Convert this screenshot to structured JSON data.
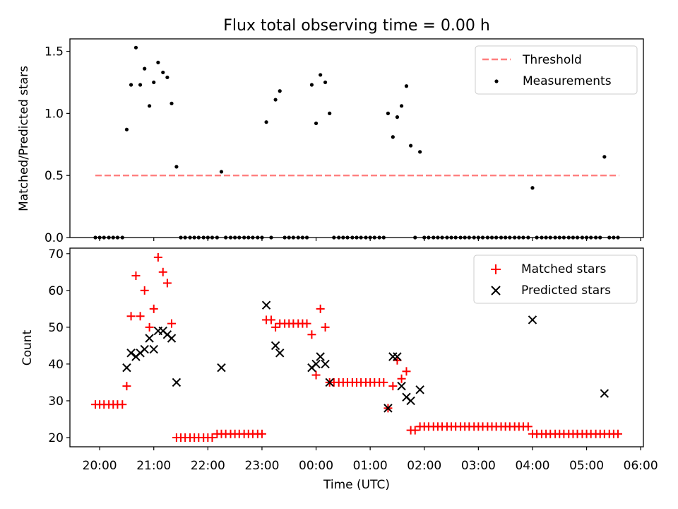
{
  "figure": {
    "title": "Flux total observing time = 0.00 h"
  },
  "chart_data": [
    {
      "type": "scatter",
      "ylabel": "Matched/Predicted stars",
      "xlim": [
        19.45,
        30.05
      ],
      "ylim": [
        0.0,
        1.6
      ],
      "yticks": [
        0.0,
        0.5,
        1.0,
        1.5
      ],
      "ytick_labels": [
        "0.0",
        "0.5",
        "1.0",
        "1.5"
      ],
      "legend": {
        "position": "top-right",
        "entries": [
          "Threshold",
          "Measurements"
        ]
      },
      "colors": {
        "threshold": "#ff7f7f",
        "points": "#000000"
      },
      "threshold": {
        "name": "Threshold",
        "y": 0.5,
        "x": [
          19.92,
          29.6
        ]
      },
      "series": [
        {
          "name": "Measurements",
          "x": [
            19.92,
            20.0,
            20.08,
            20.17,
            20.25,
            20.33,
            20.42,
            20.5,
            20.58,
            20.67,
            20.75,
            20.83,
            20.92,
            21.0,
            21.08,
            21.17,
            21.25,
            21.33,
            21.42,
            21.5,
            21.58,
            21.67,
            21.75,
            21.83,
            21.92,
            22.0,
            22.08,
            22.17,
            22.25,
            22.33,
            22.42,
            22.5,
            22.58,
            22.67,
            22.75,
            22.83,
            22.92,
            23.0,
            23.08,
            23.17,
            23.25,
            23.33,
            23.42,
            23.5,
            23.58,
            23.67,
            23.75,
            23.83,
            23.92,
            24.0,
            24.08,
            24.17,
            24.25,
            24.33,
            24.42,
            24.5,
            24.58,
            24.67,
            24.75,
            24.83,
            24.92,
            25.0,
            25.08,
            25.17,
            25.25,
            25.33,
            25.42,
            25.5,
            25.58,
            25.67,
            25.75,
            25.83,
            25.92,
            26.0,
            26.08,
            26.17,
            26.25,
            26.33,
            26.42,
            26.5,
            26.58,
            26.67,
            26.75,
            26.83,
            26.92,
            27.0,
            27.08,
            27.17,
            27.25,
            27.33,
            27.42,
            27.5,
            27.58,
            27.67,
            27.75,
            27.83,
            27.92,
            28.0,
            28.08,
            28.17,
            28.25,
            28.33,
            28.42,
            28.5,
            28.58,
            28.67,
            28.75,
            28.83,
            28.92,
            29.0,
            29.08,
            29.17,
            29.25,
            29.33,
            29.42,
            29.5,
            29.58
          ],
          "y": [
            0.0,
            0.0,
            0.0,
            0.0,
            0.0,
            0.0,
            0.0,
            0.87,
            1.23,
            1.53,
            1.23,
            1.36,
            1.06,
            1.25,
            1.41,
            1.33,
            1.29,
            1.08,
            0.57,
            0.0,
            0.0,
            0.0,
            0.0,
            0.0,
            0.0,
            0.0,
            0.0,
            0.0,
            0.53,
            0.0,
            0.0,
            0.0,
            0.0,
            0.0,
            0.0,
            0.0,
            0.0,
            0.0,
            0.93,
            0.0,
            1.11,
            1.18,
            0.0,
            0.0,
            0.0,
            0.0,
            0.0,
            0.0,
            1.23,
            0.92,
            1.31,
            1.25,
            1.0,
            0.0,
            0.0,
            0.0,
            0.0,
            0.0,
            0.0,
            0.0,
            0.0,
            0.0,
            0.0,
            0.0,
            0.0,
            1.0,
            0.81,
            0.97,
            1.06,
            1.22,
            0.74,
            0.0,
            0.69,
            0.0,
            0.0,
            0.0,
            0.0,
            0.0,
            0.0,
            0.0,
            0.0,
            0.0,
            0.0,
            0.0,
            0.0,
            0.0,
            0.0,
            0.0,
            0.0,
            0.0,
            0.0,
            0.0,
            0.0,
            0.0,
            0.0,
            0.0,
            0.0,
            0.4,
            0.0,
            0.0,
            0.0,
            0.0,
            0.0,
            0.0,
            0.0,
            0.0,
            0.0,
            0.0,
            0.0,
            0.0,
            0.0,
            0.0,
            0.0,
            0.65,
            0.0,
            0.0,
            0.0
          ]
        }
      ]
    },
    {
      "type": "scatter",
      "xlabel": "Time (UTC)",
      "ylabel": "Count",
      "xlim": [
        19.45,
        30.05
      ],
      "ylim": [
        17.5,
        71.5
      ],
      "yticks": [
        20,
        30,
        40,
        50,
        60,
        70
      ],
      "ytick_labels": [
        "20",
        "30",
        "40",
        "50",
        "60",
        "70"
      ],
      "xticks": [
        20,
        21,
        22,
        23,
        24,
        25,
        26,
        27,
        28,
        29,
        30
      ],
      "xtick_labels": [
        "20:00",
        "21:00",
        "22:00",
        "23:00",
        "00:00",
        "01:00",
        "02:00",
        "03:00",
        "04:00",
        "05:00",
        "06:00"
      ],
      "legend": {
        "position": "top-right",
        "entries": [
          "Matched stars",
          "Predicted stars"
        ]
      },
      "colors": {
        "matched": "#ff0000",
        "predicted": "#000000"
      },
      "series": [
        {
          "name": "Matched stars",
          "marker": "plus",
          "x": [
            19.92,
            20.0,
            20.08,
            20.17,
            20.25,
            20.33,
            20.42,
            20.5,
            20.58,
            20.67,
            20.75,
            20.83,
            20.92,
            21.0,
            21.08,
            21.17,
            21.25,
            21.33,
            21.42,
            21.5,
            21.58,
            21.67,
            21.75,
            21.83,
            21.92,
            22.0,
            22.08,
            22.17,
            22.25,
            22.33,
            22.42,
            22.5,
            22.58,
            22.67,
            22.75,
            22.83,
            22.92,
            23.0,
            23.08,
            23.17,
            23.25,
            23.33,
            23.42,
            23.5,
            23.58,
            23.67,
            23.75,
            23.83,
            23.92,
            24.0,
            24.08,
            24.17,
            24.25,
            24.33,
            24.42,
            24.5,
            24.58,
            24.67,
            24.75,
            24.83,
            24.92,
            25.0,
            25.08,
            25.17,
            25.25,
            25.33,
            25.42,
            25.5,
            25.58,
            25.67,
            25.75,
            25.83,
            25.92,
            26.0,
            26.08,
            26.17,
            26.25,
            26.33,
            26.42,
            26.5,
            26.58,
            26.67,
            26.75,
            26.83,
            26.92,
            27.0,
            27.08,
            27.17,
            27.25,
            27.33,
            27.42,
            27.5,
            27.58,
            27.67,
            27.75,
            27.83,
            27.92,
            28.0,
            28.08,
            28.17,
            28.25,
            28.33,
            28.42,
            28.5,
            28.58,
            28.67,
            28.75,
            28.83,
            28.92,
            29.0,
            29.08,
            29.17,
            29.25,
            29.33,
            29.42,
            29.5,
            29.58
          ],
          "y": [
            29,
            29,
            29,
            29,
            29,
            29,
            29,
            34,
            53,
            64,
            53,
            60,
            50,
            55,
            69,
            65,
            62,
            51,
            20,
            20,
            20,
            20,
            20,
            20,
            20,
            20,
            20,
            21,
            21,
            21,
            21,
            21,
            21,
            21,
            21,
            21,
            21,
            21,
            52,
            52,
            50,
            51,
            51,
            51,
            51,
            51,
            51,
            51,
            48,
            37,
            55,
            50,
            35,
            35,
            35,
            35,
            35,
            35,
            35,
            35,
            35,
            35,
            35,
            35,
            35,
            28,
            34,
            41,
            36,
            38,
            22,
            22,
            23,
            23,
            23,
            23,
            23,
            23,
            23,
            23,
            23,
            23,
            23,
            23,
            23,
            23,
            23,
            23,
            23,
            23,
            23,
            23,
            23,
            23,
            23,
            23,
            23,
            21,
            21,
            21,
            21,
            21,
            21,
            21,
            21,
            21,
            21,
            21,
            21,
            21,
            21,
            21,
            21,
            21,
            21,
            21,
            21
          ]
        },
        {
          "name": "Predicted stars",
          "marker": "x",
          "x": [
            20.5,
            20.58,
            20.67,
            20.75,
            20.83,
            20.92,
            21.0,
            21.08,
            21.17,
            21.25,
            21.33,
            21.42,
            22.25,
            23.08,
            23.25,
            23.33,
            23.92,
            24.0,
            24.08,
            24.17,
            24.25,
            25.33,
            25.42,
            25.5,
            25.58,
            25.67,
            25.75,
            25.92,
            28.0,
            29.33
          ],
          "y": [
            39,
            43,
            42,
            43,
            44,
            47,
            44,
            49,
            49,
            48,
            47,
            35,
            39,
            56,
            45,
            43,
            39,
            40,
            42,
            40,
            35,
            28,
            42,
            42,
            34,
            31,
            30,
            33,
            52,
            32
          ]
        }
      ]
    }
  ]
}
